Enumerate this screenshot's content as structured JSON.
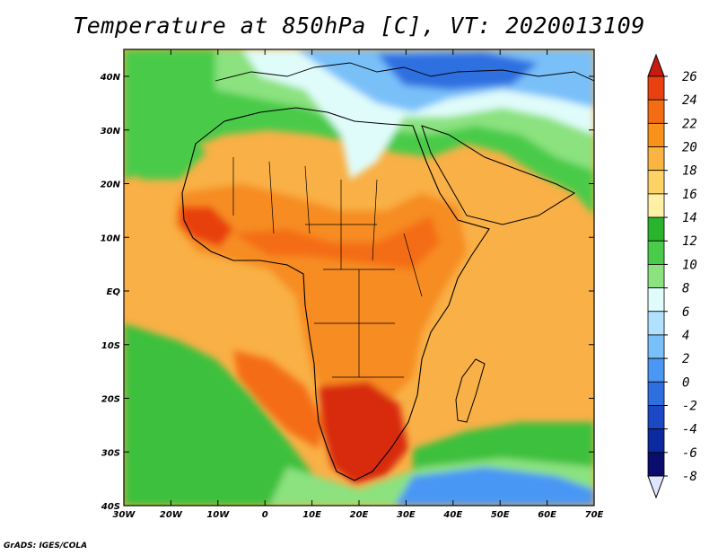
{
  "title": "Temperature at 850hPa [C], VT: 2020013109",
  "credit": "GrADS: IGES/COLA",
  "lon_ticks": [
    "30W",
    "20W",
    "10W",
    "0",
    "10E",
    "20E",
    "30E",
    "40E",
    "50E",
    "60E",
    "70E"
  ],
  "lat_ticks": [
    "40N",
    "30N",
    "20N",
    "10N",
    "EQ",
    "10S",
    "20S",
    "30S",
    "40S"
  ],
  "colorbar": {
    "labels": [
      "26",
      "24",
      "22",
      "20",
      "18",
      "16",
      "14",
      "12",
      "10",
      "8",
      "6",
      "4",
      "2",
      "0",
      "-2",
      "-4",
      "-6",
      "-8"
    ],
    "colors": [
      "#c71b10",
      "#e8410f",
      "#f46d12",
      "#f9921b",
      "#fab443",
      "#fcd364",
      "#fff0a6",
      "#2ab32c",
      "#4acb4a",
      "#8be27f",
      "#e0fcfa",
      "#b0e2ff",
      "#79c0f9",
      "#4a97f4",
      "#2e6fe0",
      "#1b48c4",
      "#0c2aa0",
      "#0a0d6b",
      "#e0e6ff"
    ]
  },
  "map": {
    "colors": {
      "ocean_warm": "#f9a530",
      "land_hot": "#f47c1a",
      "very_hot": "#e8410f",
      "green": "#3cc03c",
      "light_green": "#7fd97a",
      "blue": "#4a97f4"
    }
  }
}
